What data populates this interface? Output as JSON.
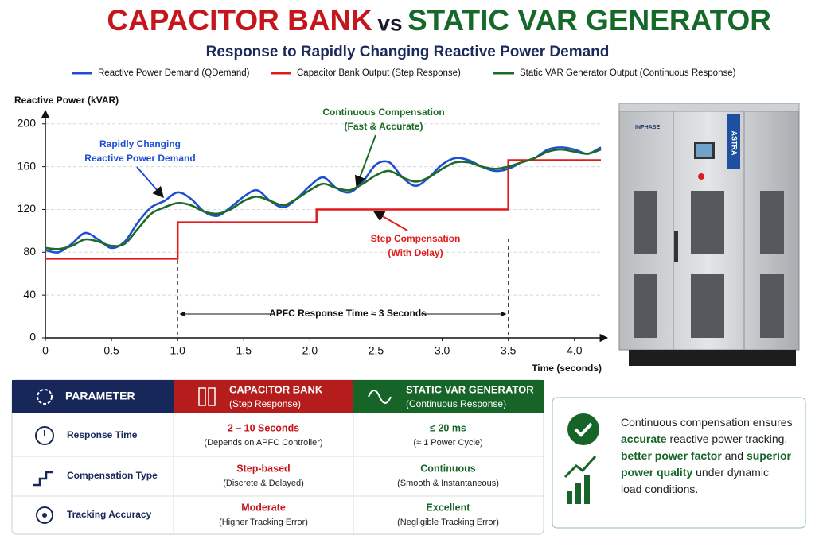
{
  "header": {
    "title_parts": [
      "CAPACITOR BANK",
      "vs",
      "STATIC VAR GENERATOR"
    ],
    "subtitle": "Response to Rapidly Changing Reactive Power Demand"
  },
  "chart_data": {
    "type": "line",
    "y_label": "Reactive Power (kVAR)",
    "x_label": "Time (seconds)",
    "xlim": [
      0,
      4.2
    ],
    "ylim": [
      0,
      208
    ],
    "xticks": [
      0,
      0.5,
      {
        "value": 1,
        "label": "1.0"
      },
      1.5,
      {
        "value": 2,
        "label": "2.0"
      },
      2.5,
      {
        "value": 3,
        "label": "3.0"
      },
      3.5,
      {
        "value": 4,
        "label": "4.0"
      }
    ],
    "yticks": [
      0,
      40,
      80,
      120,
      160,
      200
    ],
    "grid": true,
    "series": [
      {
        "name": "Reactive Power Demand (QDemand)",
        "color": "#1f4fd0",
        "curve": "smooth",
        "x": [
          0,
          0.1,
          0.2,
          0.3,
          0.4,
          0.5,
          0.6,
          0.7,
          0.8,
          0.9,
          1.0,
          1.1,
          1.2,
          1.3,
          1.4,
          1.5,
          1.6,
          1.7,
          1.8,
          1.9,
          2.0,
          2.1,
          2.2,
          2.3,
          2.4,
          2.5,
          2.6,
          2.7,
          2.8,
          2.9,
          3.0,
          3.1,
          3.2,
          3.3,
          3.4,
          3.5,
          3.6,
          3.7,
          3.8,
          3.9,
          4.0,
          4.1,
          4.2
        ],
        "values": [
          82,
          80,
          88,
          98,
          92,
          84,
          90,
          108,
          122,
          128,
          136,
          130,
          118,
          114,
          122,
          132,
          138,
          128,
          122,
          130,
          142,
          150,
          140,
          136,
          146,
          162,
          164,
          150,
          142,
          150,
          162,
          168,
          166,
          160,
          156,
          158,
          164,
          168,
          176,
          178,
          176,
          172,
          178
        ]
      },
      {
        "name": "Capacitor Bank Output (Step Response)",
        "color": "#e01b1b",
        "curve": "step",
        "x": [
          0,
          1.0,
          1.0,
          2.05,
          2.05,
          3.5,
          3.5,
          4.2
        ],
        "values": [
          74,
          74,
          108,
          108,
          120,
          120,
          166,
          166
        ]
      },
      {
        "name": "Static VAR Generator Output (Continuous Response)",
        "color": "#1e6b26",
        "curve": "smooth",
        "x": [
          0,
          0.1,
          0.2,
          0.3,
          0.4,
          0.5,
          0.6,
          0.7,
          0.8,
          0.9,
          1.0,
          1.1,
          1.2,
          1.3,
          1.4,
          1.5,
          1.6,
          1.7,
          1.8,
          1.9,
          2.0,
          2.1,
          2.2,
          2.3,
          2.4,
          2.5,
          2.6,
          2.7,
          2.8,
          2.9,
          3.0,
          3.1,
          3.2,
          3.3,
          3.4,
          3.5,
          3.6,
          3.7,
          3.8,
          3.9,
          4.0,
          4.1,
          4.2
        ],
        "values": [
          84,
          83,
          86,
          92,
          90,
          86,
          88,
          102,
          116,
          122,
          126,
          124,
          118,
          116,
          120,
          128,
          132,
          128,
          124,
          130,
          138,
          144,
          140,
          138,
          144,
          152,
          156,
          150,
          146,
          150,
          158,
          164,
          164,
          160,
          158,
          160,
          164,
          168,
          174,
          176,
          174,
          172,
          176
        ]
      }
    ],
    "annotations": [
      {
        "lines": [
          "Rapidly Changing",
          "Reactive Power Demand"
        ],
        "color": "#1f4fd0"
      },
      {
        "lines": [
          "Continuous Compensation",
          "(Fast & Accurate)"
        ],
        "color": "#1e6b26"
      },
      {
        "lines": [
          "Step Compensation",
          "(With Delay)"
        ],
        "color": "#e01b1b"
      },
      {
        "lines": [
          "APFC Response Time ≈ 3 Seconds"
        ],
        "color": "#111111"
      }
    ]
  },
  "product": {
    "brand": "INPHASE",
    "model": "ASTRA"
  },
  "table": {
    "columns": [
      {
        "title": "PARAMETER"
      },
      {
        "title": "CAPACITOR BANK",
        "subtitle": "(Step Response)"
      },
      {
        "title": "STATIC VAR GENERATOR",
        "subtitle": "(Continuous Response)"
      }
    ],
    "rows": [
      {
        "parameter": "Response Time",
        "capacitor": {
          "main": "2 – 10 Seconds",
          "detail": "(Depends on APFC Controller)"
        },
        "svg": {
          "main": "≤ 20 ms",
          "detail": "(≈ 1 Power Cycle)"
        }
      },
      {
        "parameter": "Compensation Type",
        "capacitor": {
          "main": "Step-based",
          "detail": "(Discrete & Delayed)"
        },
        "svg": {
          "main": "Continuous",
          "detail": "(Smooth & Instantaneous)"
        }
      },
      {
        "parameter": "Tracking Accuracy",
        "capacitor": {
          "main": "Moderate",
          "detail": "(Higher Tracking Error)"
        },
        "svg": {
          "main": "Excellent",
          "detail": "(Negligible Tracking Error)"
        }
      }
    ]
  },
  "note": {
    "lines": [
      [
        {
          "text": "Continuous compensation ensures",
          "strong": false
        }
      ],
      [
        {
          "text": "accurate",
          "strong": true
        },
        {
          "text": " reactive power tracking,",
          "strong": false
        }
      ],
      [
        {
          "text": "better power factor",
          "strong": true
        },
        {
          "text": " and ",
          "strong": false
        },
        {
          "text": "superior",
          "strong": true
        }
      ],
      [
        {
          "text": "power quality",
          "strong": true
        },
        {
          "text": " under dynamic",
          "strong": false
        }
      ],
      [
        {
          "text": "load conditions.",
          "strong": false
        }
      ]
    ]
  }
}
